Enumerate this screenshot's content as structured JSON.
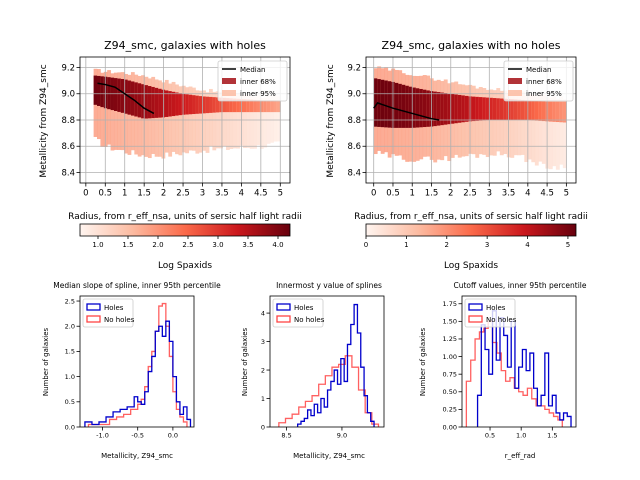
{
  "chart_data": [
    {
      "type": "area",
      "title": "Z94_smc, galaxies with holes",
      "xlabel": "Radius, from r_eff_nsa, units of sersic half light radii",
      "ylabel": "Metallicity from Z94_smc",
      "xlim": [
        -0.15,
        5.25
      ],
      "ylim": [
        8.32,
        9.28
      ],
      "xticks": [
        "0",
        "0.5",
        "1",
        "1.5",
        "2",
        "2.5",
        "3",
        "3.5",
        "4",
        "4.5",
        "5"
      ],
      "xtick_values": [
        0,
        0.5,
        1,
        1.5,
        2,
        2.5,
        3,
        3.5,
        4,
        4.5,
        5
      ],
      "yticks": [
        "8.4",
        "8.6",
        "8.8",
        "9.0",
        "9.2"
      ],
      "ytick_values": [
        8.4,
        8.6,
        8.8,
        9.0,
        9.2
      ],
      "grid": true,
      "legend": {
        "position": "top-right",
        "entries": [
          "Median",
          "inner 68%",
          "inner 95%"
        ]
      },
      "colorbar": {
        "label": "Log Spaxids",
        "range": [
          0.7,
          4.2
        ],
        "ticks": [
          "1.0",
          "1.5",
          "2.0",
          "2.5",
          "3.0",
          "3.5",
          "4.0"
        ],
        "tick_values": [
          1.0,
          1.5,
          2.0,
          2.5,
          3.0,
          3.5,
          4.0
        ]
      },
      "radius": [
        0.2,
        0.5,
        1.0,
        1.5,
        2.0,
        2.5,
        3.0,
        3.5,
        4.0,
        4.5,
        5.0
      ],
      "inner68_lo": [
        8.92,
        8.89,
        8.85,
        8.81,
        8.82,
        8.84,
        8.85,
        8.86,
        8.86,
        8.86,
        8.86
      ],
      "inner68_hi": [
        9.14,
        9.13,
        9.11,
        9.07,
        9.03,
        9.0,
        8.98,
        8.97,
        8.96,
        8.95,
        8.95
      ],
      "inner95_lo": [
        8.66,
        8.6,
        8.56,
        8.53,
        8.53,
        8.55,
        8.57,
        8.58,
        8.59,
        8.6,
        8.62
      ],
      "inner95_hi": [
        9.18,
        9.17,
        9.16,
        9.14,
        9.1,
        9.06,
        9.03,
        9.01,
        9.0,
        8.98,
        8.97
      ],
      "log_spaxids": [
        4.1,
        4.0,
        3.8,
        3.6,
        3.3,
        3.0,
        2.6,
        2.2,
        1.8,
        1.4,
        1.0
      ],
      "median_x": [
        0.3,
        0.5,
        0.75,
        1.0,
        1.25,
        1.5,
        1.75
      ],
      "median_y": [
        9.08,
        9.07,
        9.05,
        9.0,
        8.95,
        8.89,
        8.85
      ]
    },
    {
      "type": "area",
      "title": "Z94_smc, galaxies with no holes",
      "xlabel": "Radius, from r_eff_nsa, units of sersic half light radii",
      "ylabel": "Metallicity from Z94_smc",
      "xlim": [
        -0.2,
        5.25
      ],
      "ylim": [
        8.32,
        9.28
      ],
      "xticks": [
        "0",
        "0.5",
        "1",
        "1.5",
        "2",
        "2.5",
        "3",
        "3.5",
        "4",
        "4.5",
        "5"
      ],
      "xtick_values": [
        0,
        0.5,
        1,
        1.5,
        2,
        2.5,
        3,
        3.5,
        4,
        4.5,
        5
      ],
      "yticks": [
        "8.4",
        "8.6",
        "8.8",
        "9.0",
        "9.2"
      ],
      "ytick_values": [
        8.4,
        8.6,
        8.8,
        9.0,
        9.2
      ],
      "grid": true,
      "legend": {
        "position": "top-right",
        "entries": [
          "Median",
          "inner 68%",
          "inner 95%"
        ]
      },
      "colorbar": {
        "label": "Log Spaxids",
        "range": [
          0,
          5.2
        ],
        "ticks": [
          "0",
          "1",
          "2",
          "3",
          "4",
          "5"
        ],
        "tick_values": [
          0,
          1,
          2,
          3,
          4,
          5
        ]
      },
      "radius": [
        0.0,
        0.5,
        1.0,
        1.5,
        2.0,
        2.5,
        3.0,
        3.5,
        4.0,
        4.5,
        5.0
      ],
      "inner68_lo": [
        8.75,
        8.74,
        8.74,
        8.75,
        8.77,
        8.79,
        8.8,
        8.8,
        8.8,
        8.79,
        8.78
      ],
      "inner68_hi": [
        9.12,
        9.09,
        9.05,
        9.02,
        9.0,
        8.98,
        8.97,
        8.96,
        8.95,
        8.94,
        8.94
      ],
      "inner95_lo": [
        8.55,
        8.52,
        8.5,
        8.5,
        8.51,
        8.53,
        8.54,
        8.54,
        8.5,
        8.44,
        8.45
      ],
      "inner95_hi": [
        9.2,
        9.18,
        9.15,
        9.12,
        9.09,
        9.06,
        9.04,
        9.02,
        9.0,
        8.98,
        8.97
      ],
      "log_spaxids": [
        5.1,
        5.0,
        4.8,
        4.5,
        4.1,
        3.7,
        3.2,
        2.7,
        2.1,
        1.4,
        0.8
      ],
      "median_x": [
        0.0,
        0.1,
        0.3,
        0.5,
        0.75,
        1.0,
        1.25,
        1.5,
        1.7
      ],
      "median_y": [
        8.89,
        8.93,
        8.91,
        8.89,
        8.87,
        8.85,
        8.83,
        8.81,
        8.8
      ]
    },
    {
      "type": "histogram",
      "title": "Median slope of spline, inner 95th percentile",
      "xlabel": "Metallicity, Z94_smc",
      "ylabel": "Number of galaxies",
      "xlim": [
        -1.32,
        0.3
      ],
      "ylim": [
        0,
        2.6
      ],
      "xticks": [
        "-1.0",
        "-0.5",
        "0.0"
      ],
      "xtick_values": [
        -1.0,
        -0.5,
        0.0
      ],
      "yticks": [
        "0.0",
        "0.5",
        "1.0",
        "1.5",
        "2.0",
        "2.5"
      ],
      "ytick_values": [
        0.0,
        0.5,
        1.0,
        1.5,
        2.0,
        2.5
      ],
      "legend": {
        "position": "top-left"
      },
      "series": [
        {
          "name": "Holes",
          "color": "#0000cc",
          "bin_edges": [
            -1.25,
            -1.15,
            -1.05,
            -0.95,
            -0.85,
            -0.75,
            -0.65,
            -0.55,
            -0.5,
            -0.45,
            -0.4,
            -0.35,
            -0.3,
            -0.25,
            -0.2,
            -0.15,
            -0.1,
            -0.05,
            0.0,
            0.05,
            0.1,
            0.15,
            0.2,
            0.25
          ],
          "heights": [
            0.1,
            0.05,
            0.1,
            0.2,
            0.3,
            0.35,
            0.4,
            0.6,
            0.5,
            0.45,
            0.7,
            1.1,
            1.4,
            1.9,
            2.0,
            1.8,
            2.1,
            1.7,
            1.0,
            0.5,
            0.25,
            0.4,
            0.15
          ]
        },
        {
          "name": "No holes",
          "color": "#ff4444",
          "bin_edges": [
            -1.2,
            -1.1,
            -1.0,
            -0.9,
            -0.8,
            -0.7,
            -0.6,
            -0.5,
            -0.45,
            -0.4,
            -0.35,
            -0.3,
            -0.25,
            -0.2,
            -0.15,
            -0.1,
            -0.05,
            0.0,
            0.05,
            0.1,
            0.15,
            0.2
          ],
          "heights": [
            0.05,
            0.05,
            0.05,
            0.15,
            0.2,
            0.25,
            0.35,
            0.45,
            0.55,
            0.8,
            1.2,
            1.5,
            1.9,
            2.4,
            2.45,
            2.0,
            1.4,
            0.7,
            0.35,
            0.2,
            0.1
          ]
        }
      ]
    },
    {
      "type": "histogram",
      "title": "Innermost y value of splines",
      "xlabel": "Metallicity, Z94_smc",
      "ylabel": "Number of galaxies",
      "xlim": [
        8.35,
        9.38
      ],
      "ylim": [
        0,
        4.6
      ],
      "xticks": [
        "8.5",
        "9.0"
      ],
      "xtick_values": [
        8.5,
        9.0
      ],
      "yticks": [
        "0",
        "1",
        "2",
        "3",
        "4"
      ],
      "ytick_values": [
        0,
        1,
        2,
        3,
        4
      ],
      "legend": {
        "position": "top-left"
      },
      "series": [
        {
          "name": "Holes",
          "color": "#0000cc",
          "bin_edges": [
            8.6,
            8.63,
            8.66,
            8.69,
            8.72,
            8.75,
            8.78,
            8.81,
            8.84,
            8.87,
            8.9,
            8.93,
            8.96,
            8.99,
            9.02,
            9.05,
            9.08,
            9.11,
            9.14,
            9.17,
            9.2,
            9.23,
            9.26,
            9.29
          ],
          "heights": [
            0.1,
            0.2,
            0.3,
            0.6,
            0.4,
            0.8,
            0.5,
            1.0,
            0.7,
            1.3,
            1.6,
            2.0,
            1.5,
            2.4,
            1.6,
            2.9,
            3.6,
            4.3,
            3.3,
            2.1,
            1.1,
            0.5,
            0.2
          ]
        },
        {
          "name": "No holes",
          "color": "#ff4444",
          "bin_edges": [
            8.43,
            8.49,
            8.55,
            8.61,
            8.67,
            8.73,
            8.79,
            8.85,
            8.91,
            8.97,
            9.03,
            9.09,
            9.15,
            9.21,
            9.27,
            9.33
          ],
          "heights": [
            0.15,
            0.3,
            0.45,
            0.7,
            0.9,
            1.1,
            1.5,
            1.8,
            2.1,
            2.2,
            2.5,
            2.1,
            1.3,
            0.5,
            0.1
          ]
        }
      ]
    },
    {
      "type": "histogram",
      "title": "Cutoff values, inner 95th percentile",
      "xlabel": "r_eff_rad",
      "ylabel": "Number of galaxies",
      "xlim": [
        0.05,
        1.88
      ],
      "ylim": [
        0,
        1.86
      ],
      "xticks": [
        "0.5",
        "1.0",
        "1.5"
      ],
      "xtick_values": [
        0.5,
        1.0,
        1.5
      ],
      "yticks": [
        "0.00",
        "0.25",
        "0.50",
        "0.75",
        "1.00",
        "1.25",
        "1.50",
        "1.75"
      ],
      "ytick_values": [
        0.0,
        0.25,
        0.5,
        0.75,
        1.0,
        1.25,
        1.5,
        1.75
      ],
      "legend": {
        "position": "top-left"
      },
      "series": [
        {
          "name": "Holes",
          "color": "#0000cc",
          "bin_edges": [
            0.3,
            0.36,
            0.42,
            0.48,
            0.54,
            0.6,
            0.66,
            0.72,
            0.78,
            0.84,
            0.9,
            0.96,
            1.02,
            1.08,
            1.14,
            1.2,
            1.26,
            1.32,
            1.38,
            1.44,
            1.5,
            1.56,
            1.62,
            1.68,
            1.74,
            1.8
          ],
          "heights": [
            0.45,
            1.45,
            1.1,
            0.75,
            1.65,
            0.95,
            1.55,
            1.3,
            0.85,
            1.5,
            0.55,
            0.85,
            1.1,
            0.8,
            1.05,
            0.55,
            0.3,
            0.45,
            1.05,
            0.3,
            0.45,
            0.2,
            0.1,
            0.2,
            0.15
          ]
        },
        {
          "name": "No holes",
          "color": "#ff4444",
          "bin_edges": [
            0.12,
            0.19,
            0.26,
            0.33,
            0.4,
            0.47,
            0.54,
            0.61,
            0.68,
            0.75,
            0.82,
            0.89,
            0.96,
            1.03,
            1.1,
            1.17,
            1.24,
            1.31,
            1.38,
            1.45,
            1.52,
            1.59,
            1.66
          ],
          "heights": [
            0.65,
            0.95,
            1.25,
            1.35,
            1.4,
            1.5,
            1.2,
            1.05,
            0.8,
            0.65,
            0.7,
            0.55,
            0.5,
            0.45,
            0.55,
            0.4,
            0.3,
            0.3,
            0.25,
            0.2,
            0.15,
            0.1
          ]
        }
      ]
    }
  ]
}
